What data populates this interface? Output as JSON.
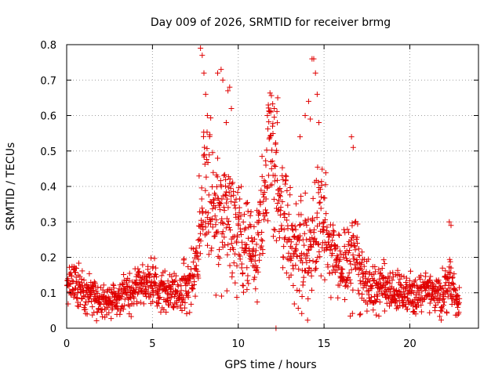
{
  "chart_data": {
    "type": "scatter",
    "title": "Day 009 of 2026, SRMTID for receiver brmg",
    "xlabel": "GPS time / hours",
    "ylabel": "SRMTID / TECUs",
    "xlim": [
      0,
      24
    ],
    "ylim": [
      0,
      0.8
    ],
    "xticks": [
      0,
      5,
      10,
      15,
      20
    ],
    "yticks": [
      0,
      0.1,
      0.2,
      0.3,
      0.4,
      0.5,
      0.6,
      0.7,
      0.8
    ],
    "grid": true,
    "marker": "+",
    "marker_color": "#e00000",
    "series": [
      {
        "name": "SRMTID",
        "profile_x": [
          0.0,
          0.3,
          0.6,
          1.0,
          1.5,
          2.0,
          2.5,
          3.0,
          3.5,
          4.0,
          4.5,
          5.0,
          5.5,
          6.0,
          6.5,
          7.0,
          7.5,
          7.8,
          8.0,
          8.3,
          8.6,
          9.0,
          9.3,
          9.6,
          10.0,
          10.3,
          10.6,
          11.0,
          11.3,
          11.6,
          11.9,
          12.2,
          12.5,
          12.8,
          13.2,
          13.6,
          14.0,
          14.4,
          14.8,
          15.2,
          15.6,
          16.0,
          16.4,
          16.8,
          17.2,
          17.6,
          18.0,
          18.5,
          19.0,
          19.5,
          20.0,
          20.5,
          21.0,
          21.5,
          22.0,
          22.3,
          22.6,
          22.9
        ],
        "profile_y": [
          0.11,
          0.13,
          0.12,
          0.1,
          0.09,
          0.08,
          0.07,
          0.09,
          0.1,
          0.11,
          0.12,
          0.13,
          0.11,
          0.1,
          0.1,
          0.12,
          0.15,
          0.3,
          0.4,
          0.38,
          0.3,
          0.33,
          0.35,
          0.28,
          0.25,
          0.24,
          0.22,
          0.2,
          0.3,
          0.4,
          0.5,
          0.45,
          0.33,
          0.3,
          0.22,
          0.2,
          0.22,
          0.25,
          0.3,
          0.26,
          0.2,
          0.15,
          0.18,
          0.2,
          0.14,
          0.12,
          0.11,
          0.12,
          0.1,
          0.09,
          0.1,
          0.09,
          0.1,
          0.09,
          0.1,
          0.15,
          0.09,
          0.07
        ],
        "spread": [
          0.045,
          0.05,
          0.045,
          0.04,
          0.035,
          0.03,
          0.03,
          0.035,
          0.04,
          0.045,
          0.05,
          0.05,
          0.045,
          0.04,
          0.04,
          0.05,
          0.06,
          0.12,
          0.15,
          0.15,
          0.13,
          0.14,
          0.14,
          0.12,
          0.1,
          0.09,
          0.08,
          0.08,
          0.11,
          0.13,
          0.14,
          0.13,
          0.12,
          0.11,
          0.09,
          0.09,
          0.11,
          0.13,
          0.11,
          0.1,
          0.08,
          0.06,
          0.08,
          0.09,
          0.06,
          0.05,
          0.045,
          0.05,
          0.045,
          0.04,
          0.04,
          0.04,
          0.04,
          0.04,
          0.04,
          0.06,
          0.04,
          0.03
        ],
        "outliers": [
          [
            7.8,
            0.79
          ],
          [
            7.9,
            0.77
          ],
          [
            8.0,
            0.72
          ],
          [
            8.1,
            0.66
          ],
          [
            8.2,
            0.6
          ],
          [
            8.8,
            0.72
          ],
          [
            9.0,
            0.73
          ],
          [
            9.1,
            0.7
          ],
          [
            9.4,
            0.67
          ],
          [
            9.5,
            0.68
          ],
          [
            9.6,
            0.62
          ],
          [
            9.3,
            0.58
          ],
          [
            11.7,
            0.6
          ],
          [
            11.9,
            0.61
          ],
          [
            12.1,
            0.62
          ],
          [
            12.3,
            0.65
          ],
          [
            12.0,
            0.57
          ],
          [
            13.6,
            0.54
          ],
          [
            13.9,
            0.6
          ],
          [
            14.1,
            0.64
          ],
          [
            14.2,
            0.59
          ],
          [
            14.3,
            0.76
          ],
          [
            14.4,
            0.76
          ],
          [
            14.5,
            0.72
          ],
          [
            14.6,
            0.66
          ],
          [
            14.7,
            0.58
          ],
          [
            16.6,
            0.54
          ],
          [
            16.7,
            0.51
          ],
          [
            22.3,
            0.3
          ],
          [
            22.4,
            0.29
          ],
          [
            12.2,
            0.0
          ]
        ]
      }
    ]
  }
}
